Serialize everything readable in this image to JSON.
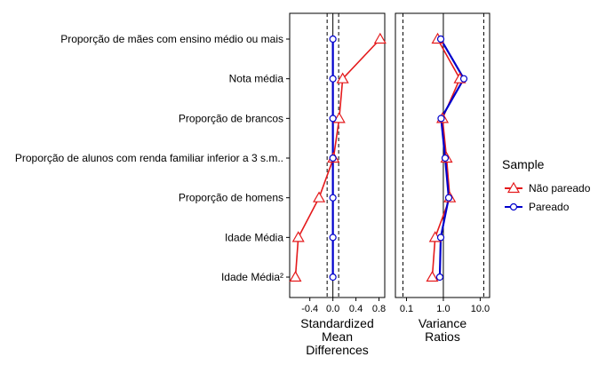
{
  "chart_data": [
    {
      "type": "scatter",
      "panel_title": [
        "Standardized",
        "Mean",
        "Differences"
      ],
      "xlim": [
        -0.75,
        0.9
      ],
      "xticks": [
        -0.4,
        0.0,
        0.4,
        0.8
      ],
      "xtick_labels": [
        "-0.4",
        "0.0",
        "0.4",
        "0.8"
      ],
      "reference_lines": {
        "solid": [
          0.0
        ],
        "dashed": [
          -0.1,
          0.1
        ]
      },
      "categories": [
        "Proporção de mães com ensino médio ou mais",
        "Nota média",
        "Proporção de brancos",
        "Proporção de alunos com renda familiar inferior a 3 s.m..",
        "Proporção de homens",
        "Idade Média",
        "Idade Média²"
      ],
      "series": [
        {
          "name": "Não pareado",
          "color": "#e41a1c",
          "marker": "triangle",
          "values": [
            0.82,
            0.17,
            0.11,
            0.01,
            -0.24,
            -0.6,
            -0.65
          ]
        },
        {
          "name": "Pareado",
          "color": "#0000cc",
          "marker": "circle",
          "values": [
            0.0,
            0.0,
            0.0,
            0.0,
            0.0,
            0.0,
            0.0
          ]
        }
      ]
    },
    {
      "type": "scatter",
      "panel_title": [
        "Variance",
        "Ratios"
      ],
      "scale": "log",
      "xlim": [
        0.05,
        18
      ],
      "xticks": [
        0.1,
        1.0,
        10.0
      ],
      "xtick_labels": [
        "0.1",
        "1.0",
        "10.0"
      ],
      "reference_lines": {
        "solid": [
          1.0
        ],
        "dashed": [
          0.08,
          12.5
        ]
      },
      "categories": [
        "Proporção de mães com ensino médio ou mais",
        "Nota média",
        "Proporção de brancos",
        "Proporção de alunos com renda familiar inferior a 3 s.m..",
        "Proporção de homens",
        "Idade Média",
        "Idade Média²"
      ],
      "series": [
        {
          "name": "Não pareado",
          "color": "#e41a1c",
          "marker": "triangle",
          "values": [
            0.7,
            2.8,
            0.95,
            1.22,
            1.5,
            0.6,
            0.5
          ]
        },
        {
          "name": "Pareado",
          "color": "#0000cc",
          "marker": "circle",
          "values": [
            0.85,
            3.6,
            0.87,
            1.12,
            1.4,
            0.85,
            0.8
          ]
        }
      ]
    }
  ],
  "legend": {
    "title": "Sample",
    "items": [
      {
        "label": "Não pareado",
        "color": "#e41a1c",
        "marker": "triangle"
      },
      {
        "label": "Pareado",
        "color": "#0000cc",
        "marker": "circle"
      }
    ]
  }
}
